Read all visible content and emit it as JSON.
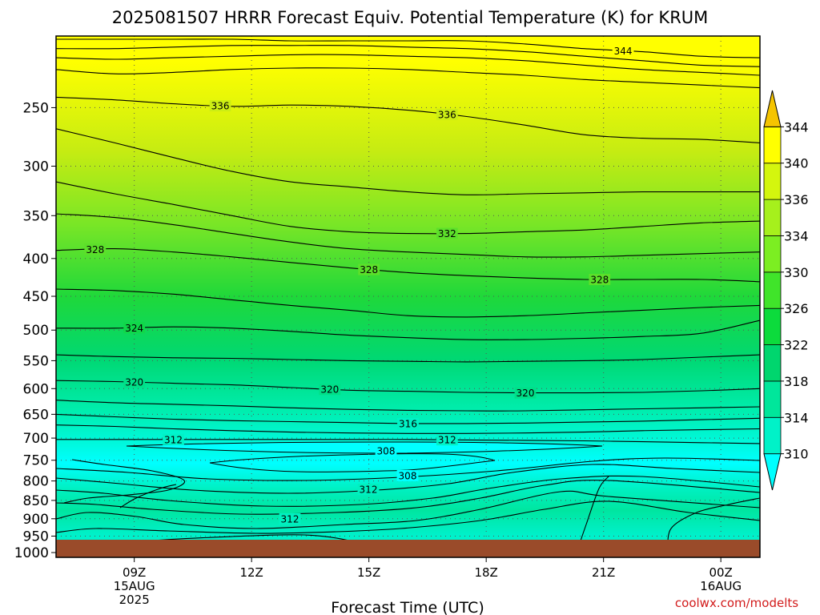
{
  "title": "2025081507 HRRR Forecast Equiv. Potential Temperature (K) for KRUM",
  "credit": "coolwx.com/modelts",
  "colors": {
    "ground": "#9a4b2a",
    "contour": "#000000",
    "credit": "#d21b1b"
  },
  "chart_data": {
    "type": "heatmap",
    "title": "2025081507 HRRR Forecast Equiv. Potential Temperature (K) for KRUM",
    "xlabel": "Forecast Time (UTC)",
    "ylabel": "",
    "x_ticks": [
      {
        "label": "09Z",
        "sub": [
          "15AUG",
          "2025"
        ],
        "hour": 9
      },
      {
        "label": "12Z",
        "sub": [],
        "hour": 12
      },
      {
        "label": "15Z",
        "sub": [],
        "hour": 15
      },
      {
        "label": "18Z",
        "sub": [],
        "hour": 18
      },
      {
        "label": "21Z",
        "sub": [],
        "hour": 21
      },
      {
        "label": "00Z",
        "sub": [
          "16AUG"
        ],
        "hour": 24
      }
    ],
    "x_range_hours": [
      7,
      25
    ],
    "y_ticks": [
      250,
      300,
      350,
      400,
      450,
      500,
      550,
      600,
      650,
      700,
      750,
      800,
      850,
      900,
      950,
      1000
    ],
    "y_range_hpa": [
      200,
      1015
    ],
    "y_scale": "log-pressure (inverted)",
    "grid": "dotted",
    "colorbar": {
      "levels": [
        310,
        314,
        318,
        322,
        326,
        330,
        334,
        336,
        340,
        344
      ],
      "labels": [
        "310",
        "314",
        "318",
        "322",
        "326",
        "330",
        "334",
        "336",
        "340",
        "344"
      ],
      "colors": [
        "#00ffff",
        "#00f2c8",
        "#00e69b",
        "#00d66e",
        "#0cdb3c",
        "#40e42a",
        "#7cee22",
        "#a6f01c",
        "#d4f60e",
        "#ffff00",
        "#f5c400"
      ]
    },
    "contour_levels": [
      {
        "k": 344,
        "hpa": [
          202,
          202,
          202,
          202,
          203,
          203,
          203,
          203,
          205,
          208,
          210,
          213,
          214
        ],
        "labeled": true,
        "label_at": [
          21.5
        ]
      },
      {
        "k": 342,
        "hpa": [
          208,
          208,
          207,
          206,
          206,
          206,
          207,
          208,
          210,
          213,
          216,
          219,
          220
        ],
        "labeled": false
      },
      {
        "k": 340,
        "hpa": [
          214,
          215,
          214,
          213,
          212,
          212,
          213,
          214,
          216,
          219,
          222,
          224,
          226
        ],
        "labeled": false
      },
      {
        "k": 338,
        "hpa": [
          222,
          225,
          224,
          222,
          221,
          221,
          222,
          224,
          226,
          229,
          231,
          233,
          235
        ],
        "labeled": false
      },
      {
        "k": 336,
        "hpa": [
          242,
          244,
          247,
          249,
          248,
          249,
          252,
          257,
          264,
          272,
          275,
          276,
          279
        ],
        "labeled": true,
        "label_at": [
          11.2,
          17.0
        ]
      },
      {
        "k": 334,
        "hpa": [
          267,
          279,
          292,
          305,
          315,
          320,
          325,
          328,
          327,
          326,
          325,
          325,
          325
        ],
        "labeled": false
      },
      {
        "k": 332,
        "hpa": [
          315,
          327,
          338,
          350,
          362,
          368,
          370,
          370,
          368,
          366,
          362,
          358,
          356
        ],
        "labeled": true,
        "label_at": [
          17.0
        ]
      },
      {
        "k": 330,
        "hpa": [
          348,
          352,
          360,
          370,
          380,
          388,
          392,
          395,
          398,
          398,
          396,
          394,
          392
        ],
        "labeled": false
      },
      {
        "k": 328,
        "hpa": [
          390,
          388,
          392,
          398,
          405,
          412,
          418,
          422,
          425,
          427,
          427,
          427,
          430
        ],
        "labeled": true,
        "label_at": [
          8.0,
          15.0,
          20.9
        ]
      },
      {
        "k": 326,
        "hpa": [
          440,
          442,
          447,
          455,
          463,
          470,
          478,
          480,
          478,
          474,
          470,
          466,
          463
        ],
        "labeled": false
      },
      {
        "k": 324,
        "hpa": [
          497,
          497,
          495,
          497,
          502,
          508,
          512,
          515,
          515,
          513,
          510,
          505,
          485
        ],
        "labeled": true,
        "label_at": [
          9.0
        ]
      },
      {
        "k": 322,
        "hpa": [
          540,
          543,
          545,
          546,
          548,
          550,
          551,
          552,
          551,
          550,
          548,
          544,
          540
        ],
        "labeled": false
      },
      {
        "k": 320,
        "hpa": [
          585,
          587,
          590,
          593,
          598,
          603,
          605,
          607,
          608,
          608,
          607,
          604,
          600
        ],
        "labeled": true,
        "label_at": [
          9.0,
          14.0,
          19.0
        ]
      },
      {
        "k": 318,
        "hpa": [
          622,
          627,
          630,
          633,
          637,
          640,
          642,
          643,
          643,
          641,
          639,
          637,
          635
        ],
        "labeled": false
      },
      {
        "k": 316,
        "hpa": [
          650,
          655,
          660,
          663,
          665,
          667,
          669,
          669,
          668,
          666,
          664,
          661,
          658
        ],
        "labeled": true,
        "label_at": [
          16.0
        ]
      },
      {
        "k": 314,
        "hpa": [
          672,
          675,
          680,
          684,
          687,
          689,
          690,
          690,
          689,
          687,
          684,
          682,
          680
        ],
        "labeled": false
      },
      {
        "k": 312,
        "hpa": [
          703,
          703,
          703,
          703,
          703,
          703,
          703,
          704,
          705,
          706,
          708,
          710,
          712
        ],
        "labeled": true,
        "label_at": [
          10.0,
          17.0
        ]
      }
    ]
  }
}
